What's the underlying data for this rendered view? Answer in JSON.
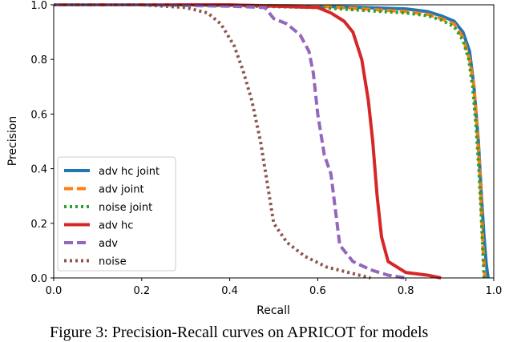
{
  "chart_data": {
    "type": "line",
    "xlabel": "Recall",
    "ylabel": "Precision",
    "xlim": [
      0.0,
      1.0
    ],
    "ylim": [
      0.0,
      1.0
    ],
    "x_ticks": [
      "0.0",
      "0.2",
      "0.4",
      "0.6",
      "0.8",
      "1.0"
    ],
    "y_ticks": [
      "0.0",
      "0.2",
      "0.4",
      "0.6",
      "0.8",
      "1.0"
    ],
    "grid": false,
    "legend_position": "lower-left",
    "series": [
      {
        "name": "adv hc joint",
        "color": "#1f77b4",
        "style": "solid",
        "points": [
          [
            0,
            1.0
          ],
          [
            0.3,
            1.0
          ],
          [
            0.6,
            0.995
          ],
          [
            0.7,
            0.99
          ],
          [
            0.8,
            0.985
          ],
          [
            0.85,
            0.975
          ],
          [
            0.88,
            0.96
          ],
          [
            0.91,
            0.94
          ],
          [
            0.93,
            0.9
          ],
          [
            0.945,
            0.83
          ],
          [
            0.955,
            0.7
          ],
          [
            0.965,
            0.5
          ],
          [
            0.972,
            0.3
          ],
          [
            0.978,
            0.15
          ],
          [
            0.983,
            0.05
          ],
          [
            0.987,
            0.0
          ]
        ]
      },
      {
        "name": "adv joint",
        "color": "#ff7f0e",
        "style": "dashed",
        "points": [
          [
            0,
            1.0
          ],
          [
            0.3,
            1.0
          ],
          [
            0.6,
            0.995
          ],
          [
            0.7,
            0.985
          ],
          [
            0.8,
            0.975
          ],
          [
            0.85,
            0.965
          ],
          [
            0.88,
            0.95
          ],
          [
            0.91,
            0.93
          ],
          [
            0.93,
            0.88
          ],
          [
            0.945,
            0.8
          ],
          [
            0.955,
            0.7
          ],
          [
            0.962,
            0.55
          ],
          [
            0.968,
            0.4
          ],
          [
            0.972,
            0.25
          ],
          [
            0.976,
            0.1
          ],
          [
            0.98,
            0.0
          ]
        ]
      },
      {
        "name": "noise joint",
        "color": "#2ca02c",
        "style": "dotted",
        "points": [
          [
            0,
            1.0
          ],
          [
            0.3,
            1.0
          ],
          [
            0.6,
            0.99
          ],
          [
            0.7,
            0.98
          ],
          [
            0.8,
            0.97
          ],
          [
            0.85,
            0.96
          ],
          [
            0.88,
            0.945
          ],
          [
            0.91,
            0.92
          ],
          [
            0.93,
            0.87
          ],
          [
            0.943,
            0.8
          ],
          [
            0.952,
            0.7
          ],
          [
            0.96,
            0.55
          ],
          [
            0.966,
            0.4
          ],
          [
            0.971,
            0.25
          ],
          [
            0.975,
            0.1
          ],
          [
            0.978,
            0.0
          ]
        ]
      },
      {
        "name": "adv hc",
        "color": "#d62728",
        "style": "solid",
        "points": [
          [
            0,
            1.0
          ],
          [
            0.4,
            1.0
          ],
          [
            0.6,
            0.99
          ],
          [
            0.63,
            0.97
          ],
          [
            0.66,
            0.94
          ],
          [
            0.68,
            0.9
          ],
          [
            0.7,
            0.8
          ],
          [
            0.715,
            0.65
          ],
          [
            0.725,
            0.5
          ],
          [
            0.735,
            0.3
          ],
          [
            0.745,
            0.15
          ],
          [
            0.76,
            0.06
          ],
          [
            0.8,
            0.02
          ],
          [
            0.85,
            0.01
          ],
          [
            0.88,
            0.0
          ]
        ]
      },
      {
        "name": "adv",
        "color": "#9467bd",
        "style": "dashed",
        "points": [
          [
            0,
            1.0
          ],
          [
            0.2,
            1.0
          ],
          [
            0.4,
            0.995
          ],
          [
            0.48,
            0.99
          ],
          [
            0.5,
            0.95
          ],
          [
            0.53,
            0.93
          ],
          [
            0.56,
            0.89
          ],
          [
            0.58,
            0.83
          ],
          [
            0.59,
            0.75
          ],
          [
            0.6,
            0.6
          ],
          [
            0.615,
            0.45
          ],
          [
            0.63,
            0.38
          ],
          [
            0.64,
            0.25
          ],
          [
            0.65,
            0.12
          ],
          [
            0.68,
            0.06
          ],
          [
            0.72,
            0.03
          ],
          [
            0.76,
            0.01
          ],
          [
            0.8,
            0.0
          ]
        ]
      },
      {
        "name": "noise",
        "color": "#8c564b",
        "style": "dotted",
        "points": [
          [
            0,
            1.0
          ],
          [
            0.2,
            1.0
          ],
          [
            0.3,
            0.99
          ],
          [
            0.35,
            0.97
          ],
          [
            0.38,
            0.93
          ],
          [
            0.41,
            0.85
          ],
          [
            0.43,
            0.76
          ],
          [
            0.45,
            0.65
          ],
          [
            0.47,
            0.5
          ],
          [
            0.48,
            0.4
          ],
          [
            0.49,
            0.3
          ],
          [
            0.5,
            0.2
          ],
          [
            0.53,
            0.13
          ],
          [
            0.57,
            0.08
          ],
          [
            0.62,
            0.04
          ],
          [
            0.67,
            0.02
          ],
          [
            0.72,
            0.0
          ]
        ]
      }
    ]
  },
  "caption": "Figure 3: Precision-Recall curves on APRICOT for models"
}
